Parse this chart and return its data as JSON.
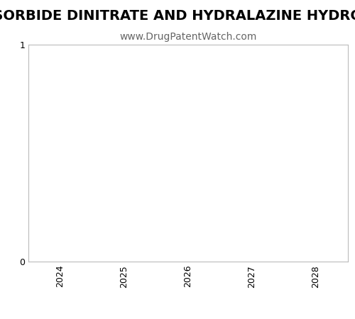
{
  "title": "Patent Expirations for ISOSORBIDE DINITRATE AND HYDRALAZINE HYDRO",
  "subtitle": "www.DrugPatentWatch.com",
  "xlim": [
    2023.5,
    2028.5
  ],
  "ylim": [
    0,
    1
  ],
  "xticks": [
    2024,
    2025,
    2026,
    2027,
    2028
  ],
  "yticks": [
    0,
    1
  ],
  "background_color": "#ffffff",
  "axes_edge_color": "#bbbbbb",
  "title_fontsize": 14,
  "subtitle_fontsize": 10,
  "tick_fontsize": 9,
  "figsize": [
    5.0,
    4.5
  ],
  "dpi": 100
}
